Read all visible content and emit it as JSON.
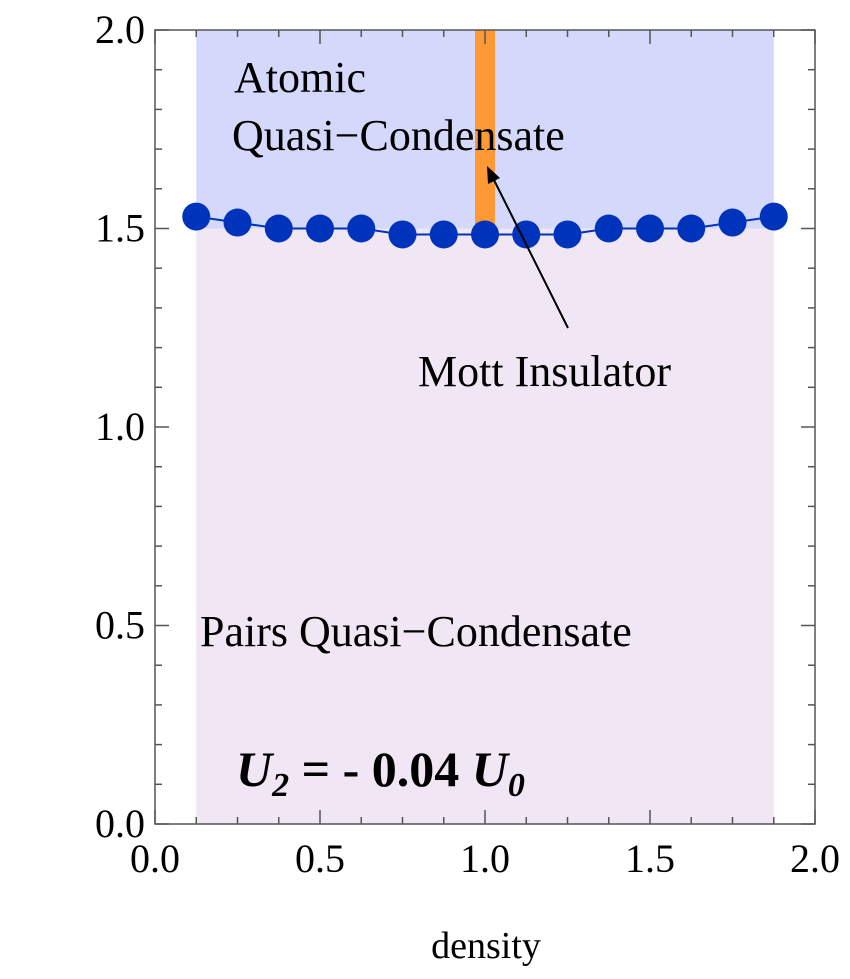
{
  "chart_data": {
    "type": "scatter",
    "title": "",
    "xlabel": "density",
    "ylabel": "",
    "xlim": [
      0.0,
      2.0
    ],
    "ylim": [
      0.0,
      2.0
    ],
    "x_ticks": [
      "0.0",
      "0.5",
      "1.0",
      "1.5",
      "2.0"
    ],
    "y_ticks": [
      "0.0",
      "0.5",
      "1.0",
      "1.5",
      "2.0"
    ],
    "regions": [
      {
        "label": "Atomic Quasi−Condensate",
        "lines": [
          "Atomic",
          "Quasi−Condensate"
        ],
        "color": "#d4d9fb"
      },
      {
        "label": "Pairs Quasi−Condensate",
        "color": "#f0e6f4"
      },
      {
        "label": "Mott Insulator",
        "x": 1.0,
        "y_range": [
          1.48,
          2.0
        ],
        "color": "#ff9933"
      }
    ],
    "parameter_label": {
      "text": "U",
      "sub0": "2",
      "mid": " = - 0.04 ",
      "text2": "U",
      "sub1": "0"
    },
    "series": [
      {
        "color": "#0033bb",
        "x": [
          0.125,
          0.25,
          0.375,
          0.5,
          0.625,
          0.75,
          0.875,
          1.0,
          1.125,
          1.25,
          1.375,
          1.5,
          1.625,
          1.75,
          1.875
        ],
        "y": [
          1.53,
          1.515,
          1.5,
          1.5,
          1.5,
          1.485,
          1.485,
          1.485,
          1.485,
          1.485,
          1.5,
          1.5,
          1.5,
          1.515,
          1.53
        ]
      }
    ],
    "grid": false
  }
}
